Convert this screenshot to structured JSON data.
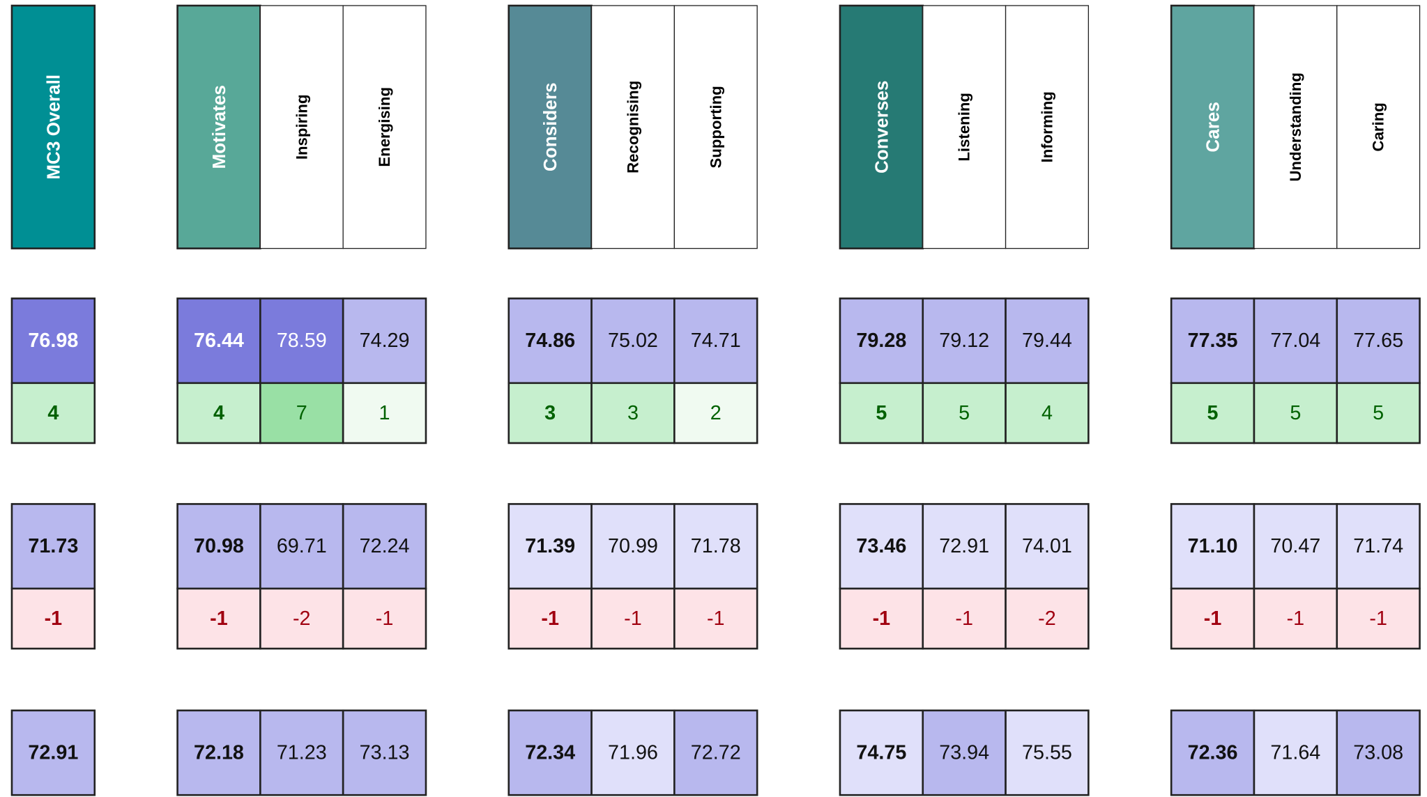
{
  "groups": [
    {
      "columns": [
        {
          "header": "MC3 Overall",
          "header_fill": "#008f94",
          "blocks": [
            {
              "score": "76.98",
              "score_fill": "#7b7bdc",
              "change": "4",
              "change_fill": "#c6efce"
            },
            {
              "score": "71.73",
              "score_fill": "#b8b8ee",
              "change": "-1",
              "change_fill": "#fde3e7"
            },
            {
              "score": "72.91",
              "score_fill": "#b8b8ee"
            }
          ]
        }
      ]
    },
    {
      "columns": [
        {
          "header": "Motivates",
          "header_fill": "#58a898",
          "blocks": [
            {
              "score": "76.44",
              "score_fill": "#7b7bdc",
              "change": "4",
              "change_fill": "#c6efce"
            },
            {
              "score": "70.98",
              "score_fill": "#b8b8ee",
              "change": "-1",
              "change_fill": "#fde3e7"
            },
            {
              "score": "72.18",
              "score_fill": "#b8b8ee"
            }
          ]
        },
        {
          "header": "Inspiring",
          "header_fill": "#ffffff",
          "blocks": [
            {
              "score": "78.59",
              "score_fill": "#7b7bdc",
              "change": "7",
              "change_fill": "#99e0a5"
            },
            {
              "score": "69.71",
              "score_fill": "#b8b8ee",
              "change": "-2",
              "change_fill": "#fde3e7"
            },
            {
              "score": "71.23",
              "score_fill": "#b8b8ee"
            }
          ]
        },
        {
          "header": "Energising",
          "header_fill": "#ffffff",
          "blocks": [
            {
              "score": "74.29",
              "score_fill": "#b8b8ee",
              "change": "1",
              "change_fill": "#f0faf1"
            },
            {
              "score": "72.24",
              "score_fill": "#b8b8ee",
              "change": "-1",
              "change_fill": "#fde3e7"
            },
            {
              "score": "73.13",
              "score_fill": "#b8b8ee"
            }
          ]
        }
      ]
    },
    {
      "columns": [
        {
          "header": "Considers",
          "header_fill": "#568a96",
          "blocks": [
            {
              "score": "74.86",
              "score_fill": "#b8b8ee",
              "change": "3",
              "change_fill": "#c6efce"
            },
            {
              "score": "71.39",
              "score_fill": "#e0e0fa",
              "change": "-1",
              "change_fill": "#fde3e7"
            },
            {
              "score": "72.34",
              "score_fill": "#b8b8ee"
            }
          ]
        },
        {
          "header": "Recognising",
          "header_fill": "#ffffff",
          "blocks": [
            {
              "score": "75.02",
              "score_fill": "#b8b8ee",
              "change": "3",
              "change_fill": "#c6efce"
            },
            {
              "score": "70.99",
              "score_fill": "#e0e0fa",
              "change": "-1",
              "change_fill": "#fde3e7"
            },
            {
              "score": "71.96",
              "score_fill": "#e0e0fa"
            }
          ]
        },
        {
          "header": "Supporting",
          "header_fill": "#ffffff",
          "blocks": [
            {
              "score": "74.71",
              "score_fill": "#b8b8ee",
              "change": "2",
              "change_fill": "#f0faf1"
            },
            {
              "score": "71.78",
              "score_fill": "#e0e0fa",
              "change": "-1",
              "change_fill": "#fde3e7"
            },
            {
              "score": "72.72",
              "score_fill": "#b8b8ee"
            }
          ]
        }
      ]
    },
    {
      "columns": [
        {
          "header": "Converses",
          "header_fill": "#267a74",
          "blocks": [
            {
              "score": "79.28",
              "score_fill": "#b8b8ee",
              "change": "5",
              "change_fill": "#c6efce"
            },
            {
              "score": "73.46",
              "score_fill": "#e0e0fa",
              "change": "-1",
              "change_fill": "#fde3e7"
            },
            {
              "score": "74.75",
              "score_fill": "#e0e0fa"
            }
          ]
        },
        {
          "header": "Listening",
          "header_fill": "#ffffff",
          "blocks": [
            {
              "score": "79.12",
              "score_fill": "#b8b8ee",
              "change": "5",
              "change_fill": "#c6efce"
            },
            {
              "score": "72.91",
              "score_fill": "#e0e0fa",
              "change": "-1",
              "change_fill": "#fde3e7"
            },
            {
              "score": "73.94",
              "score_fill": "#b8b8ee"
            }
          ]
        },
        {
          "header": "Informing",
          "header_fill": "#ffffff",
          "blocks": [
            {
              "score": "79.44",
              "score_fill": "#b8b8ee",
              "change": "4",
              "change_fill": "#c6efce"
            },
            {
              "score": "74.01",
              "score_fill": "#e0e0fa",
              "change": "-2",
              "change_fill": "#fde3e7"
            },
            {
              "score": "75.55",
              "score_fill": "#e0e0fa"
            }
          ]
        }
      ]
    },
    {
      "columns": [
        {
          "header": "Cares",
          "header_fill": "#5fa5a0",
          "blocks": [
            {
              "score": "77.35",
              "score_fill": "#b8b8ee",
              "change": "5",
              "change_fill": "#c6efce"
            },
            {
              "score": "71.10",
              "score_fill": "#e0e0fa",
              "change": "-1",
              "change_fill": "#fde3e7"
            },
            {
              "score": "72.36",
              "score_fill": "#b8b8ee"
            }
          ]
        },
        {
          "header": "Understanding",
          "header_fill": "#ffffff",
          "blocks": [
            {
              "score": "77.04",
              "score_fill": "#b8b8ee",
              "change": "5",
              "change_fill": "#c6efce"
            },
            {
              "score": "70.47",
              "score_fill": "#e0e0fa",
              "change": "-1",
              "change_fill": "#fde3e7"
            },
            {
              "score": "71.64",
              "score_fill": "#e0e0fa"
            }
          ]
        },
        {
          "header": "Caring",
          "header_fill": "#ffffff",
          "blocks": [
            {
              "score": "77.65",
              "score_fill": "#b8b8ee",
              "change": "5",
              "change_fill": "#c6efce"
            },
            {
              "score": "71.74",
              "score_fill": "#e0e0fa",
              "change": "-1",
              "change_fill": "#fde3e7"
            },
            {
              "score": "73.08",
              "score_fill": "#b8b8ee"
            }
          ]
        }
      ]
    }
  ]
}
